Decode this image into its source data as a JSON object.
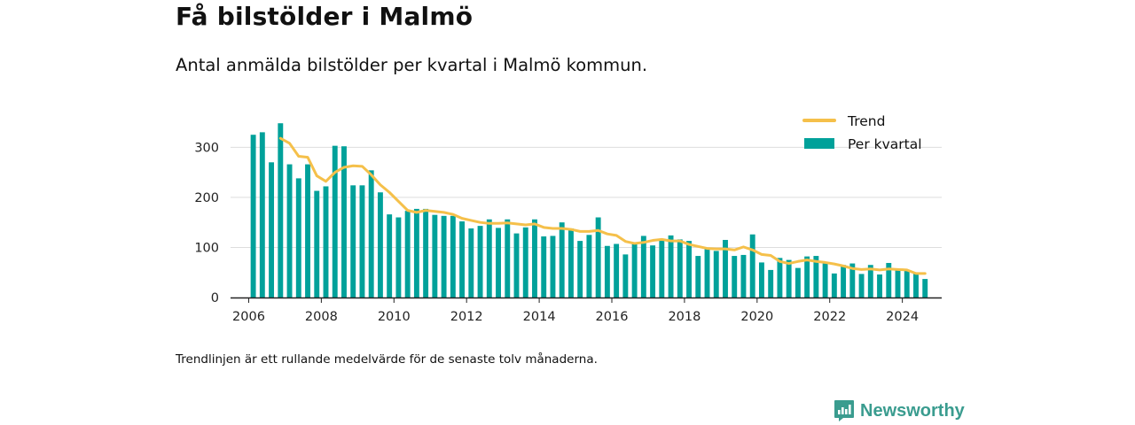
{
  "header": {
    "title": "Få bilstölder i Malmö",
    "subtitle": "Antal anmälda bilstölder per kvartal i Malmö kommun."
  },
  "footnote": "Trendlinjen är ett rullande medelvärde för de senaste tolv månaderna.",
  "brand": {
    "name": "Newsworthy",
    "icon": "newsworthy-logo-icon"
  },
  "colors": {
    "bars": "#00a19a",
    "trend": "#f5c04a",
    "axis": "#222222",
    "grid": "#dddddd"
  },
  "chart_data": {
    "type": "bar",
    "title": "Få bilstölder i Malmö",
    "subtitle": "Antal anmälda bilstölder per kvartal i Malmö kommun.",
    "xlabel": "",
    "ylabel": "",
    "ylim": [
      0,
      350
    ],
    "yticks": [
      0,
      100,
      200,
      300
    ],
    "xticks": [
      "2006",
      "2008",
      "2010",
      "2012",
      "2014",
      "2016",
      "2018",
      "2020",
      "2022",
      "2024"
    ],
    "xlim": [
      "2005-07",
      "2025-02"
    ],
    "grid": "horizontal",
    "legend_position": "top-right",
    "legend": [
      "Trend",
      "Per kvartal"
    ],
    "series": [
      {
        "name": "Per kvartal",
        "type": "bar",
        "x": [
          "2006-Q1",
          "2006-Q2",
          "2006-Q3",
          "2006-Q4",
          "2007-Q1",
          "2007-Q2",
          "2007-Q3",
          "2007-Q4",
          "2008-Q1",
          "2008-Q2",
          "2008-Q3",
          "2008-Q4",
          "2009-Q1",
          "2009-Q2",
          "2009-Q3",
          "2009-Q4",
          "2010-Q1",
          "2010-Q2",
          "2010-Q3",
          "2010-Q4",
          "2011-Q1",
          "2011-Q2",
          "2011-Q3",
          "2011-Q4",
          "2012-Q1",
          "2012-Q2",
          "2012-Q3",
          "2012-Q4",
          "2013-Q1",
          "2013-Q2",
          "2013-Q3",
          "2013-Q4",
          "2014-Q1",
          "2014-Q2",
          "2014-Q3",
          "2014-Q4",
          "2015-Q1",
          "2015-Q2",
          "2015-Q3",
          "2015-Q4",
          "2016-Q1",
          "2016-Q2",
          "2016-Q3",
          "2016-Q4",
          "2017-Q1",
          "2017-Q2",
          "2017-Q3",
          "2017-Q4",
          "2018-Q1",
          "2018-Q2",
          "2018-Q3",
          "2018-Q4",
          "2019-Q1",
          "2019-Q2",
          "2019-Q3",
          "2019-Q4",
          "2020-Q1",
          "2020-Q2",
          "2020-Q3",
          "2020-Q4",
          "2021-Q1",
          "2021-Q2",
          "2021-Q3",
          "2021-Q4",
          "2022-Q1",
          "2022-Q2",
          "2022-Q3",
          "2022-Q4",
          "2023-Q1",
          "2023-Q2",
          "2023-Q3",
          "2023-Q4",
          "2024-Q1",
          "2024-Q2",
          "2024-Q3"
        ],
        "values": [
          325,
          330,
          270,
          348,
          266,
          238,
          266,
          213,
          222,
          303,
          302,
          224,
          224,
          254,
          210,
          166,
          160,
          173,
          177,
          177,
          165,
          163,
          163,
          152,
          138,
          143,
          156,
          139,
          156,
          128,
          140,
          156,
          122,
          123,
          150,
          138,
          113,
          125,
          160,
          103,
          107,
          86,
          110,
          123,
          104,
          114,
          124,
          116,
          113,
          83,
          100,
          93,
          115,
          83,
          85,
          126,
          70,
          55,
          79,
          75,
          59,
          82,
          83,
          68,
          48,
          65,
          68,
          47,
          65,
          46,
          69,
          57,
          53,
          48,
          37
        ]
      },
      {
        "name": "Trend",
        "type": "line",
        "x": [
          "2006-Q4",
          "2007-Q1",
          "2007-Q2",
          "2007-Q3",
          "2007-Q4",
          "2008-Q1",
          "2008-Q2",
          "2008-Q3",
          "2008-Q4",
          "2009-Q1",
          "2009-Q2",
          "2009-Q3",
          "2009-Q4",
          "2010-Q1",
          "2010-Q2",
          "2010-Q3",
          "2010-Q4",
          "2011-Q1",
          "2011-Q2",
          "2011-Q3",
          "2011-Q4",
          "2012-Q1",
          "2012-Q2",
          "2012-Q3",
          "2012-Q4",
          "2013-Q1",
          "2013-Q2",
          "2013-Q3",
          "2013-Q4",
          "2014-Q1",
          "2014-Q2",
          "2014-Q3",
          "2014-Q4",
          "2015-Q1",
          "2015-Q2",
          "2015-Q3",
          "2015-Q4",
          "2016-Q1",
          "2016-Q2",
          "2016-Q3",
          "2016-Q4",
          "2017-Q1",
          "2017-Q2",
          "2017-Q3",
          "2017-Q4",
          "2018-Q1",
          "2018-Q2",
          "2018-Q3",
          "2018-Q4",
          "2019-Q1",
          "2019-Q2",
          "2019-Q3",
          "2019-Q4",
          "2020-Q1",
          "2020-Q2",
          "2020-Q3",
          "2020-Q4",
          "2021-Q1",
          "2021-Q2",
          "2021-Q3",
          "2021-Q4",
          "2022-Q1",
          "2022-Q2",
          "2022-Q3",
          "2022-Q4",
          "2023-Q1",
          "2023-Q2",
          "2023-Q3",
          "2023-Q4",
          "2024-Q1",
          "2024-Q2",
          "2024-Q3"
        ],
        "values": [
          318,
          308,
          282,
          280,
          243,
          232,
          250,
          260,
          263,
          262,
          245,
          225,
          210,
          192,
          174,
          170,
          174,
          172,
          170,
          166,
          158,
          154,
          150,
          148,
          148,
          149,
          147,
          145,
          147,
          140,
          138,
          138,
          136,
          132,
          132,
          134,
          127,
          124,
          112,
          108,
          110,
          114,
          116,
          113,
          113,
          106,
          102,
          98,
          97,
          97,
          95,
          101,
          95,
          86,
          84,
          72,
          68,
          72,
          75,
          72,
          70,
          67,
          63,
          58,
          56,
          57,
          55,
          57,
          56,
          55,
          48,
          48
        ]
      }
    ]
  }
}
